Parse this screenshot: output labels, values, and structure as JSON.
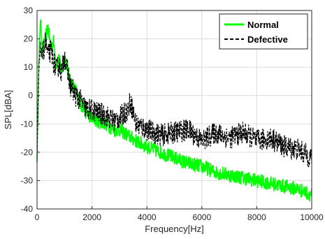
{
  "chart_data": {
    "type": "line",
    "title": "",
    "xlabel": "Frequency[Hz]",
    "ylabel": "SPL[dBA]",
    "xlim": [
      0,
      10000
    ],
    "ylim": [
      -40,
      30
    ],
    "xticks": [
      "0",
      "2000",
      "4000",
      "6000",
      "8000",
      "10000"
    ],
    "yticks": [
      "30",
      "20",
      "10",
      "0",
      "-10",
      "-20",
      "-30",
      "-40"
    ],
    "grid": true,
    "legend_position": "top-right",
    "series": [
      {
        "name": "Normal",
        "color": "#00ff00",
        "style": "solid",
        "points": [
          [
            0,
            -22
          ],
          [
            60,
            10
          ],
          [
            120,
            27
          ],
          [
            200,
            16
          ],
          [
            300,
            20
          ],
          [
            400,
            24
          ],
          [
            500,
            17
          ],
          [
            600,
            19
          ],
          [
            700,
            11
          ],
          [
            800,
            13
          ],
          [
            900,
            8
          ],
          [
            1000,
            14
          ],
          [
            1100,
            10
          ],
          [
            1200,
            5
          ],
          [
            1400,
            2
          ],
          [
            1600,
            -3
          ],
          [
            1800,
            -6
          ],
          [
            2000,
            -8
          ],
          [
            2200,
            -9
          ],
          [
            2500,
            -10
          ],
          [
            2800,
            -12
          ],
          [
            3000,
            -12
          ],
          [
            3300,
            -14
          ],
          [
            3600,
            -16
          ],
          [
            4000,
            -18
          ],
          [
            4500,
            -20
          ],
          [
            5000,
            -22
          ],
          [
            5500,
            -24
          ],
          [
            6000,
            -25
          ],
          [
            6500,
            -27
          ],
          [
            7000,
            -28
          ],
          [
            7500,
            -29
          ],
          [
            8000,
            -30
          ],
          [
            8500,
            -31
          ],
          [
            9000,
            -32
          ],
          [
            9500,
            -33
          ],
          [
            10000,
            -35
          ]
        ]
      },
      {
        "name": "Defective",
        "color": "#000000",
        "style": "dashed",
        "points": [
          [
            0,
            -23
          ],
          [
            60,
            8
          ],
          [
            120,
            17
          ],
          [
            200,
            14
          ],
          [
            300,
            19
          ],
          [
            400,
            14
          ],
          [
            500,
            16
          ],
          [
            600,
            12
          ],
          [
            700,
            9
          ],
          [
            800,
            11
          ],
          [
            900,
            8
          ],
          [
            1000,
            14
          ],
          [
            1100,
            9
          ],
          [
            1200,
            4
          ],
          [
            1400,
            0
          ],
          [
            1600,
            -2
          ],
          [
            1800,
            -5
          ],
          [
            2000,
            -5
          ],
          [
            2200,
            -6
          ],
          [
            2500,
            -7
          ],
          [
            2800,
            -9
          ],
          [
            3000,
            -8
          ],
          [
            3300,
            -5
          ],
          [
            3400,
            -2
          ],
          [
            3600,
            -10
          ],
          [
            4000,
            -12
          ],
          [
            4500,
            -14
          ],
          [
            5000,
            -13
          ],
          [
            5500,
            -12
          ],
          [
            6000,
            -16
          ],
          [
            6500,
            -13
          ],
          [
            7000,
            -15
          ],
          [
            7500,
            -13
          ],
          [
            8000,
            -16
          ],
          [
            8500,
            -15
          ],
          [
            9000,
            -18
          ],
          [
            9500,
            -19
          ],
          [
            10000,
            -22
          ]
        ]
      }
    ]
  }
}
